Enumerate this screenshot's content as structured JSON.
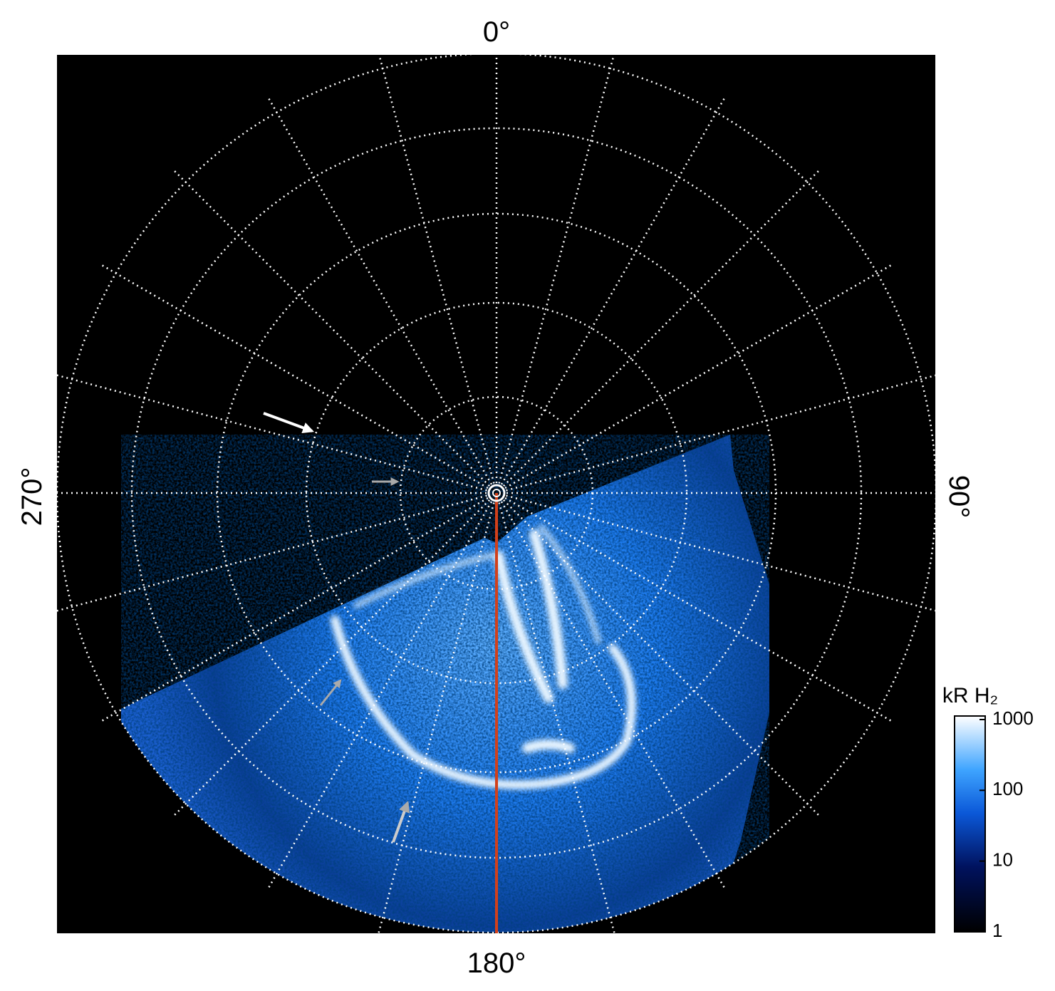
{
  "labels": {
    "top": "0°",
    "right": "90°",
    "bottom": "180°",
    "left": "270°"
  },
  "colorbar": {
    "title": "kR H₂",
    "log": true,
    "ylim": [
      1,
      1000
    ],
    "yticks": [
      1,
      10,
      100,
      1000
    ]
  }
}
